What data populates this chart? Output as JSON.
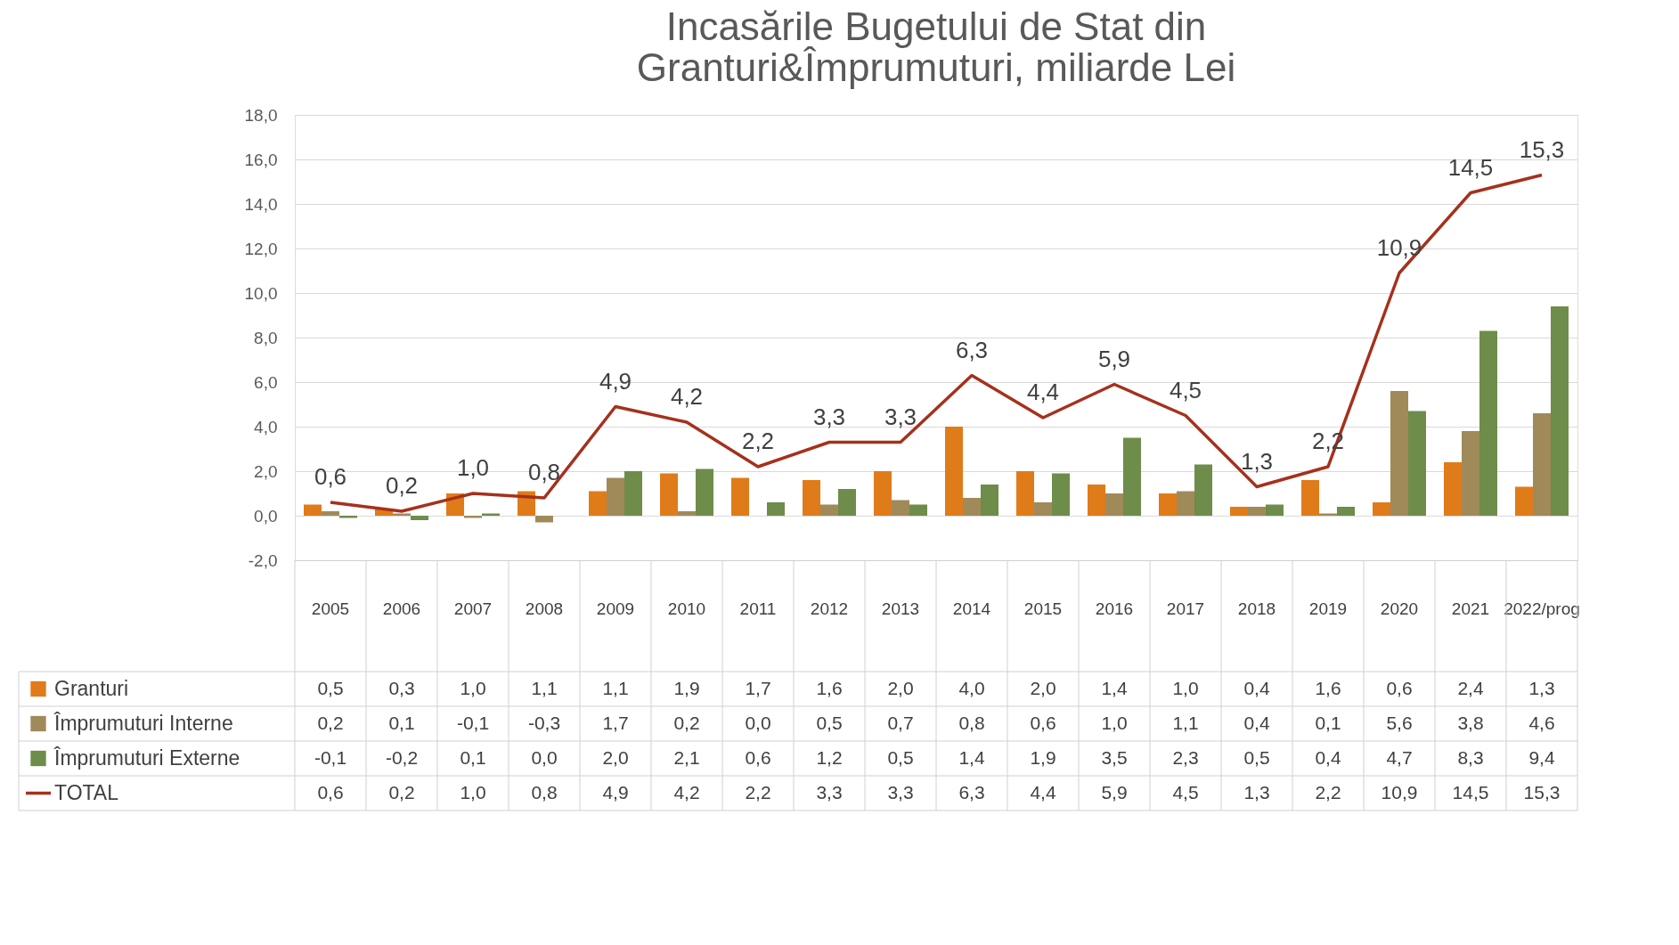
{
  "chart_data": {
    "type": "bar",
    "title": [
      "Incasările Bugetului de Stat din",
      "Granturi&Împrumuturi, miliarde Lei"
    ],
    "categories": [
      "2005",
      "2006",
      "2007",
      "2008",
      "2009",
      "2010",
      "2011",
      "2012",
      "2013",
      "2014",
      "2015",
      "2016",
      "2017",
      "2018",
      "2019",
      "2020",
      "2021",
      "2022/prog"
    ],
    "series": [
      {
        "name": "Granturi",
        "color": "#e07b1a",
        "values": [
          0.5,
          0.3,
          1.0,
          1.1,
          1.1,
          1.9,
          1.7,
          1.6,
          2.0,
          4.0,
          2.0,
          1.4,
          1.0,
          0.4,
          1.6,
          0.6,
          2.4,
          1.3
        ],
        "value_labels": [
          "0,5",
          "0,3",
          "1,0",
          "1,1",
          "1,1",
          "1,9",
          "1,7",
          "1,6",
          "2,0",
          "4,0",
          "2,0",
          "1,4",
          "1,0",
          "0,4",
          "1,6",
          "0,6",
          "2,4",
          "1,3"
        ]
      },
      {
        "name": "Împrumuturi Interne",
        "color": "#a08a5a",
        "values": [
          0.2,
          0.1,
          -0.1,
          -0.3,
          1.7,
          0.2,
          0.0,
          0.5,
          0.7,
          0.8,
          0.6,
          1.0,
          1.1,
          0.4,
          0.1,
          5.6,
          3.8,
          4.6
        ],
        "value_labels": [
          "0,2",
          "0,1",
          "-0,1",
          "-0,3",
          "1,7",
          "0,2",
          "0,0",
          "0,5",
          "0,7",
          "0,8",
          "0,6",
          "1,0",
          "1,1",
          "0,4",
          "0,1",
          "5,6",
          "3,8",
          "4,6"
        ]
      },
      {
        "name": "Împrumuturi Externe",
        "color": "#6e8c4a",
        "values": [
          -0.1,
          -0.2,
          0.1,
          0.0,
          2.0,
          2.1,
          0.6,
          1.2,
          0.5,
          1.4,
          1.9,
          3.5,
          2.3,
          0.5,
          0.4,
          4.7,
          8.3,
          9.4
        ],
        "value_labels": [
          "-0,1",
          "-0,2",
          "0,1",
          "0,0",
          "2,0",
          "2,1",
          "0,6",
          "1,2",
          "0,5",
          "1,4",
          "1,9",
          "3,5",
          "2,3",
          "0,5",
          "0,4",
          "4,7",
          "8,3",
          "9,4"
        ]
      },
      {
        "name": "TOTAL",
        "type": "line",
        "color": "#a5311c",
        "values": [
          0.6,
          0.2,
          1.0,
          0.8,
          4.9,
          4.2,
          2.2,
          3.3,
          3.3,
          6.3,
          4.4,
          5.9,
          4.5,
          1.3,
          2.2,
          10.9,
          14.5,
          15.3
        ],
        "value_labels": [
          "0,6",
          "0,2",
          "1,0",
          "0,8",
          "4,9",
          "4,2",
          "2,2",
          "3,3",
          "3,3",
          "6,3",
          "4,4",
          "5,9",
          "4,5",
          "1,3",
          "2,2",
          "10,9",
          "14,5",
          "15,3"
        ]
      }
    ],
    "ylim": [
      -2,
      18
    ],
    "yticks": [
      {
        "value": -2,
        "label": "-2,0"
      },
      {
        "value": 0,
        "label": "0,0"
      },
      {
        "value": 2,
        "label": "2,0"
      },
      {
        "value": 4,
        "label": "4,0"
      },
      {
        "value": 6,
        "label": "6,0"
      },
      {
        "value": 8,
        "label": "8,0"
      },
      {
        "value": 10,
        "label": "10,0"
      },
      {
        "value": 12,
        "label": "12,0"
      },
      {
        "value": 14,
        "label": "14,0"
      },
      {
        "value": 16,
        "label": "16,0"
      },
      {
        "value": 18,
        "label": "18,0"
      }
    ],
    "grid": "y",
    "legend": "bottom left"
  }
}
